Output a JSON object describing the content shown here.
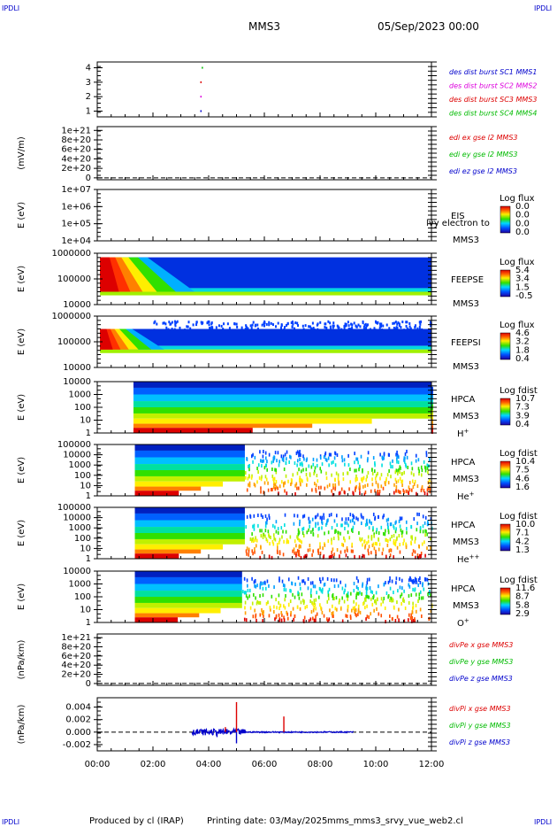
{
  "header": {
    "corner_tl": "IPDLI",
    "corner_tr": "IPDLI",
    "corner_bl": "IPDLI",
    "corner_br": "IPDLI",
    "spacecraft": "MMS3",
    "date": "05/Sep/2023 00:00"
  },
  "footer": {
    "produced": "Produced by cl (IRAP)",
    "printing": "Printing date: 03/May/2025",
    "script": "mms_mms3_srvy_vue_web2.cl"
  },
  "colors": {
    "red": "#dd0000",
    "green": "#00bb00",
    "blue": "#0000cc",
    "magenta": "#dd00dd"
  },
  "chart_data": {
    "type": "multi-panel-timeseries",
    "x_ticks": [
      "00:00",
      "02:00",
      "04:00",
      "06:00",
      "08:00",
      "10:00",
      "12:00"
    ],
    "x_range_hours": [
      0,
      12
    ],
    "panels": [
      {
        "id": "burst",
        "type": "scatter",
        "ylabel": "",
        "y_ticks": [
          "1",
          "2",
          "3",
          "4"
        ],
        "y_range": [
          0.6,
          4.4
        ],
        "legend": [
          {
            "label": "des dist burst SC1 MMS1",
            "color": "#0000cc"
          },
          {
            "label": "des dist burst SC2 MMS2",
            "color": "#dd00dd"
          },
          {
            "label": "des dist burst SC3 MMS3",
            "color": "#dd0000"
          },
          {
            "label": "des dist burst SC4 MMS4",
            "color": "#00bb00"
          }
        ],
        "points": [
          {
            "x": 3.7,
            "y": 1,
            "color": "#0000cc"
          },
          {
            "x": 3.7,
            "y": 2,
            "color": "#dd00dd"
          },
          {
            "x": 3.7,
            "y": 3,
            "color": "#dd0000"
          },
          {
            "x": 3.75,
            "y": 4,
            "color": "#00bb00"
          }
        ]
      },
      {
        "id": "edi",
        "type": "line",
        "ylabel": "(mV/m)",
        "y_ticks": [
          "0",
          "2e+20",
          "4e+20",
          "6e+20",
          "8e+20",
          "1e+21"
        ],
        "y_range": [
          -4e+19,
          1.08e+21
        ],
        "legend": [
          {
            "label": "edi ex gse l2 MMS3",
            "color": "#dd0000"
          },
          {
            "label": "edi ey gse l2 MMS3",
            "color": "#00bb00"
          },
          {
            "label": "edi ez gse l2 MMS3",
            "color": "#0000cc"
          }
        ]
      },
      {
        "id": "eis",
        "type": "heatmap",
        "ylabel": "E (eV)",
        "y_ticks": [
          "1e+04",
          "1e+05",
          "1e+06",
          "1e+07"
        ],
        "instrument": "EIS",
        "sub": "MMS3",
        "overlay": "lvy electron to",
        "cbar_title": "Log flux",
        "cbar_ticks": [
          "0.0",
          "0.0",
          "0.0",
          "0.0"
        ]
      },
      {
        "id": "feepse",
        "type": "heatmap",
        "ylabel": "E (eV)",
        "y_ticks": [
          "10000",
          "100000",
          "1000000"
        ],
        "instrument": "FEEPSE",
        "sub": "MMS3",
        "cbar_title": "Log flux",
        "cbar_ticks": [
          "5.4",
          "3.4",
          "1.5",
          "-0.5"
        ]
      },
      {
        "id": "feepsi",
        "type": "heatmap",
        "ylabel": "E (eV)",
        "y_ticks": [
          "10000",
          "100000",
          "1000000"
        ],
        "instrument": "FEEPSI",
        "sub": "MMS3",
        "cbar_title": "Log flux",
        "cbar_ticks": [
          "4.6",
          "3.2",
          "1.8",
          "0.4"
        ]
      },
      {
        "id": "hpca_h",
        "type": "heatmap",
        "ylabel": "E (eV)",
        "y_ticks": [
          "1",
          "10",
          "100",
          "1000",
          "10000"
        ],
        "instrument": "HPCA",
        "sub": "MMS3",
        "species": "H",
        "species_sup": "+",
        "cbar_title": "Log fdist",
        "cbar_ticks": [
          "10.7",
          "7.3",
          "3.9",
          "0.4"
        ]
      },
      {
        "id": "hpca_he",
        "type": "heatmap",
        "ylabel": "E (eV)",
        "y_ticks": [
          "1",
          "10",
          "100",
          "1000",
          "10000",
          "100000"
        ],
        "instrument": "HPCA",
        "sub": "MMS3",
        "species": "He",
        "species_sup": "+",
        "cbar_title": "Log fdist",
        "cbar_ticks": [
          "10.4",
          "7.5",
          "4.6",
          "1.6"
        ]
      },
      {
        "id": "hpca_hepp",
        "type": "heatmap",
        "ylabel": "E (eV)",
        "y_ticks": [
          "1",
          "10",
          "100",
          "1000",
          "10000",
          "100000"
        ],
        "instrument": "HPCA",
        "sub": "MMS3",
        "species": "He",
        "species_sup": "++",
        "cbar_title": "Log fdist",
        "cbar_ticks": [
          "10.0",
          "7.1",
          "4.2",
          "1.3"
        ]
      },
      {
        "id": "hpca_o",
        "type": "heatmap",
        "ylabel": "E (eV)",
        "y_ticks": [
          "1",
          "10",
          "100",
          "1000",
          "10000"
        ],
        "instrument": "HPCA",
        "sub": "MMS3",
        "species": "O",
        "species_sup": "+",
        "cbar_title": "Log fdist",
        "cbar_ticks": [
          "11.6",
          "8.7",
          "5.8",
          "2.9"
        ]
      },
      {
        "id": "divpe",
        "type": "line",
        "ylabel": "(nPa/km)",
        "y_ticks": [
          "0",
          "2e+20",
          "4e+20",
          "6e+20",
          "8e+20",
          "1e+21"
        ],
        "y_range": [
          -4e+19,
          1.08e+21
        ],
        "legend": [
          {
            "label": "divPe x gse MMS3",
            "color": "#dd0000"
          },
          {
            "label": "divPe y gse MMS3",
            "color": "#00bb00"
          },
          {
            "label": "divPe z gse MMS3",
            "color": "#0000cc"
          }
        ]
      },
      {
        "id": "divpi",
        "type": "line",
        "ylabel": "(nPa/km)",
        "y_ticks": [
          "-0.002",
          "0.000",
          "0.002",
          "0.004"
        ],
        "y_range": [
          -0.003,
          0.0055
        ],
        "legend": [
          {
            "label": "divPi x gse MMS3",
            "color": "#dd0000"
          },
          {
            "label": "divPi y gse MMS3",
            "color": "#00bb00"
          },
          {
            "label": "divPi z gse MMS3",
            "color": "#0000cc"
          }
        ],
        "spikes": [
          {
            "x": 5.0,
            "y": 0.0048,
            "color": "#dd0000"
          },
          {
            "x": 5.0,
            "y": -0.0018,
            "color": "#0000cc"
          },
          {
            "x": 6.7,
            "y": 0.0025,
            "color": "#dd0000"
          },
          {
            "x": 4.6,
            "y": 0.0008,
            "color": "#dd0000"
          },
          {
            "x": 4.3,
            "y": -0.0008,
            "color": "#0000cc"
          }
        ]
      }
    ]
  }
}
